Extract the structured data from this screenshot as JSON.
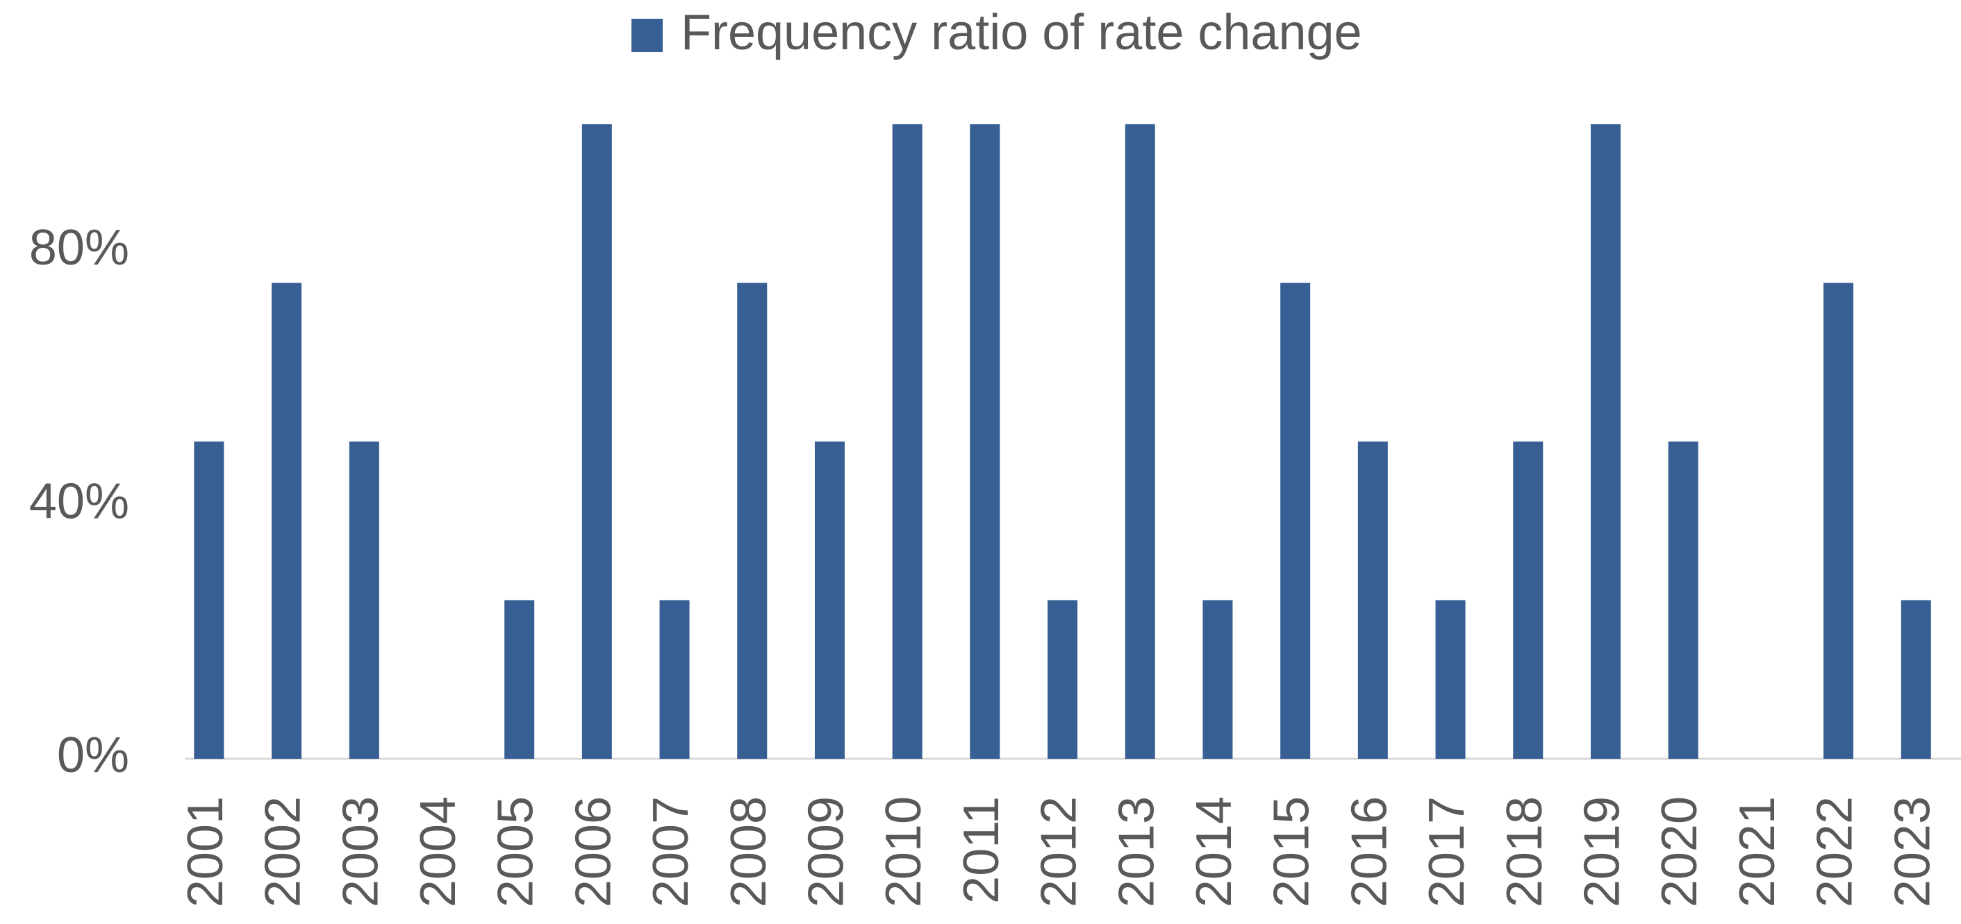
{
  "chart_data": {
    "type": "bar",
    "categories": [
      "2001",
      "2002",
      "2003",
      "2004",
      "2005",
      "2006",
      "2007",
      "2008",
      "2009",
      "2010",
      "2011",
      "2012",
      "2013",
      "2014",
      "2015",
      "2016",
      "2017",
      "2018",
      "2019",
      "2020",
      "2021",
      "2022",
      "2023"
    ],
    "series": [
      {
        "name": "Frequency ratio of rate change",
        "color": "#375f93",
        "values": [
          50,
          75,
          50,
          0,
          25,
          100,
          25,
          75,
          50,
          100,
          100,
          25,
          100,
          25,
          75,
          50,
          25,
          50,
          100,
          50,
          0,
          75,
          25
        ]
      }
    ],
    "ylim": [
      0,
      100
    ],
    "yticks": [
      {
        "value": 0,
        "label": "0%"
      },
      {
        "value": 40,
        "label": "40%"
      },
      {
        "value": 80,
        "label": "80%"
      }
    ],
    "grid": false,
    "legend": "top"
  }
}
